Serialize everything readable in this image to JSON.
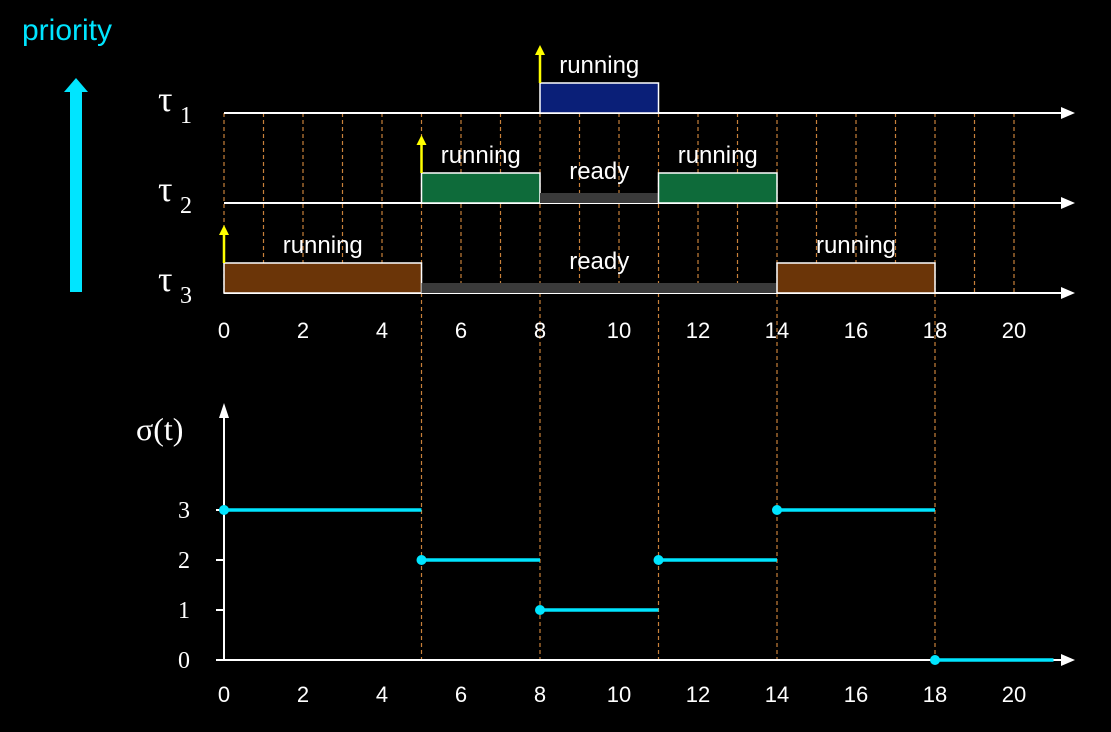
{
  "priority_label": "priority",
  "colors": {
    "background": "#000000",
    "cyan": "#00e5ff",
    "arrival_arrow": "#ffff00",
    "axis": "#ffffff",
    "guide": "#c8803a",
    "tau1_running": "#0a1f78",
    "tau2_running": "#0e6b3a",
    "tau3_running": "#6b3508",
    "ready": "#3a3a3a"
  },
  "icons": {
    "arrival": "up-arrow-icon",
    "priority": "up-arrow-icon"
  },
  "x_ticks": [
    "0",
    "2",
    "4",
    "6",
    "8",
    "10",
    "12",
    "14",
    "16",
    "18",
    "20"
  ],
  "tasks": [
    {
      "symbol": "τ",
      "index": "1",
      "arrival": 8,
      "segments": [
        {
          "state": "running",
          "start": 8,
          "end": 11,
          "label": "running"
        }
      ]
    },
    {
      "symbol": "τ",
      "index": "2",
      "arrival": 5,
      "segments": [
        {
          "state": "running",
          "start": 5,
          "end": 8,
          "label": "running"
        },
        {
          "state": "ready",
          "start": 8,
          "end": 11,
          "label": "ready"
        },
        {
          "state": "running",
          "start": 11,
          "end": 14,
          "label": "running"
        }
      ]
    },
    {
      "symbol": "τ",
      "index": "3",
      "arrival": 0,
      "segments": [
        {
          "state": "running",
          "start": 0,
          "end": 5,
          "label": "running"
        },
        {
          "state": "ready",
          "start": 5,
          "end": 14,
          "label": "ready"
        },
        {
          "state": "running",
          "start": 14,
          "end": 18,
          "label": "running"
        }
      ]
    }
  ],
  "chart_data": {
    "type": "line",
    "step": true,
    "ylabel": "σ(t)",
    "xlabel": "",
    "xlim": [
      0,
      21
    ],
    "ylim": [
      0,
      3
    ],
    "y_ticks": [
      "0",
      "1",
      "2",
      "3"
    ],
    "x_ticks": [
      "0",
      "2",
      "4",
      "6",
      "8",
      "10",
      "12",
      "14",
      "16",
      "18",
      "20"
    ],
    "steps": [
      {
        "start": 0,
        "end": 5,
        "value": 3
      },
      {
        "start": 5,
        "end": 8,
        "value": 2
      },
      {
        "start": 8,
        "end": 11,
        "value": 1
      },
      {
        "start": 11,
        "end": 14,
        "value": 2
      },
      {
        "start": 14,
        "end": 18,
        "value": 3
      },
      {
        "start": 18,
        "end": 21,
        "value": 0
      }
    ],
    "event_times": [
      5,
      8,
      11,
      14,
      18
    ]
  }
}
